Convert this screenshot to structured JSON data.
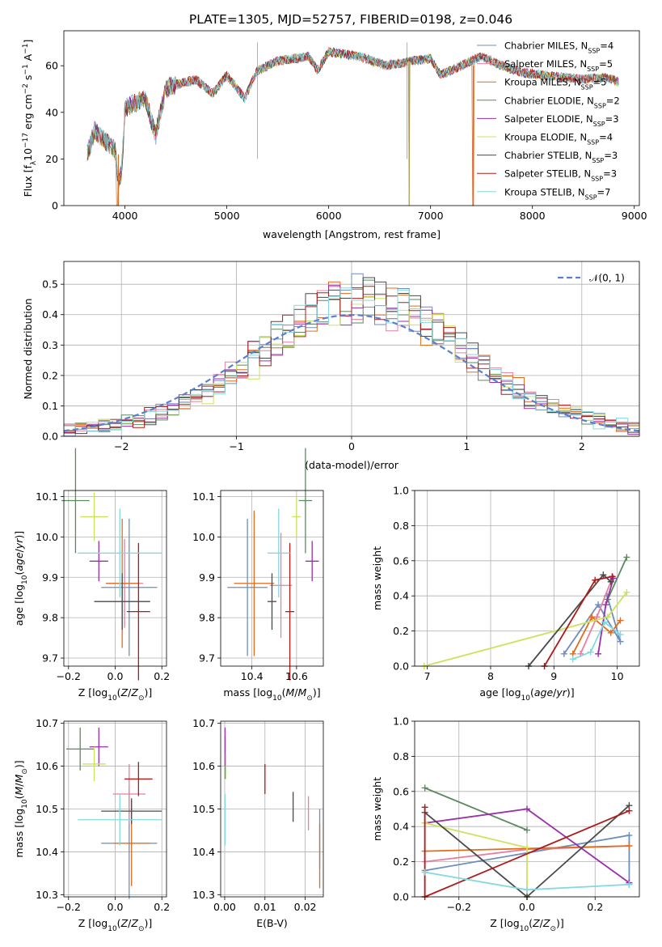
{
  "figure": {
    "title": "PLATE=1305, MJD=52757, FIBERID=0198, z=0.046"
  },
  "models": [
    {
      "name": "Chabrier MILES",
      "nssp": "4",
      "color": "#6c8ebf"
    },
    {
      "name": "Salpeter MILES",
      "nssp": "5",
      "color": "#e87f9f"
    },
    {
      "name": "Kroupa MILES",
      "nssp": "5",
      "color": "#e06c1c"
    },
    {
      "name": "Chabrier ELODIE",
      "nssp": "2",
      "color": "#5a8a5e"
    },
    {
      "name": "Salpeter ELODIE",
      "nssp": "3",
      "color": "#9a2fa8"
    },
    {
      "name": "Kroupa ELODIE",
      "nssp": "4",
      "color": "#cbe35a"
    },
    {
      "name": "Chabrier STELIB",
      "nssp": "3",
      "color": "#4a4a4a"
    },
    {
      "name": "Salpeter STELIB",
      "nssp": "3",
      "color": "#b01a1a"
    },
    {
      "name": "Kroupa STELIB",
      "nssp": "7",
      "color": "#82d9e0"
    }
  ],
  "chart_data": [
    {
      "id": "spectrum",
      "type": "line",
      "title": "PLATE=1305, MJD=52757, FIBERID=0198, z=0.046",
      "xlabel": "wavelength [Angstrom, rest frame]",
      "ylabel": "Flux [f",
      "xlim": [
        3400,
        9050
      ],
      "ylim": [
        0,
        75
      ],
      "xticks": [
        "4000",
        "5000",
        "6000",
        "7000",
        "8000",
        "9000"
      ],
      "yticks": [
        "0",
        "20",
        "40",
        "60"
      ],
      "grid": false,
      "legend": "top-right",
      "series": [
        {
          "x": 3630,
          "y": 22
        },
        {
          "x": 3700,
          "y": 32
        },
        {
          "x": 3800,
          "y": 28
        },
        {
          "x": 3900,
          "y": 24
        },
        {
          "x": 3935,
          "y": 10
        },
        {
          "x": 3970,
          "y": 15
        },
        {
          "x": 4000,
          "y": 42
        },
        {
          "x": 4100,
          "y": 44
        },
        {
          "x": 4200,
          "y": 46
        },
        {
          "x": 4300,
          "y": 30
        },
        {
          "x": 4400,
          "y": 50
        },
        {
          "x": 4500,
          "y": 52
        },
        {
          "x": 4700,
          "y": 54
        },
        {
          "x": 4860,
          "y": 48
        },
        {
          "x": 5000,
          "y": 56
        },
        {
          "x": 5175,
          "y": 46
        },
        {
          "x": 5300,
          "y": 58
        },
        {
          "x": 5500,
          "y": 62
        },
        {
          "x": 5800,
          "y": 64
        },
        {
          "x": 5890,
          "y": 58
        },
        {
          "x": 6000,
          "y": 66
        },
        {
          "x": 6300,
          "y": 64
        },
        {
          "x": 6563,
          "y": 60
        },
        {
          "x": 6800,
          "y": 62
        },
        {
          "x": 7000,
          "y": 63
        },
        {
          "x": 7100,
          "y": 56
        },
        {
          "x": 7300,
          "y": 60
        },
        {
          "x": 7500,
          "y": 64
        },
        {
          "x": 7700,
          "y": 60
        },
        {
          "x": 7900,
          "y": 57
        },
        {
          "x": 8100,
          "y": 56
        },
        {
          "x": 8300,
          "y": 55
        },
        {
          "x": 8500,
          "y": 54
        },
        {
          "x": 8700,
          "y": 55
        },
        {
          "x": 8850,
          "y": 53
        }
      ],
      "dropouts": [
        3920,
        6790,
        7420
      ]
    },
    {
      "id": "residuals",
      "type": "bar",
      "xlabel": "(data-model)/error",
      "ylabel": "Normed distribution",
      "xlim": [
        -2.5,
        2.5
      ],
      "ylim": [
        0,
        0.575
      ],
      "xticks": [
        "−2",
        "−1",
        "0",
        "1",
        "2"
      ],
      "yticks": [
        "0.0",
        "0.1",
        "0.2",
        "0.3",
        "0.4",
        "0.5"
      ],
      "grid": true,
      "legend": "top-right",
      "legend_label": "𝒩(0, 1)",
      "bin_width": 0.1,
      "bin_start": -2.5,
      "values": [
        0.025,
        0.028,
        0.032,
        0.036,
        0.04,
        0.048,
        0.056,
        0.066,
        0.078,
        0.092,
        0.11,
        0.128,
        0.148,
        0.17,
        0.195,
        0.222,
        0.25,
        0.282,
        0.314,
        0.345,
        0.375,
        0.4,
        0.42,
        0.436,
        0.445,
        0.452,
        0.45,
        0.444,
        0.432,
        0.416,
        0.396,
        0.372,
        0.345,
        0.315,
        0.285,
        0.255,
        0.226,
        0.2,
        0.175,
        0.152,
        0.13,
        0.112,
        0.096,
        0.082,
        0.07,
        0.06,
        0.051,
        0.043,
        0.036,
        0.03
      ]
    },
    {
      "id": "age-vs-Z",
      "type": "scatter",
      "xlabel": "Z [log",
      "ylabel": "age  [log",
      "xlim": [
        -0.22,
        0.22
      ],
      "ylim": [
        9.68,
        10.115
      ],
      "xticks": [
        "−0.2",
        "0.0",
        "0.2"
      ],
      "yticks": [
        "9.7",
        "9.8",
        "9.9",
        "10.0",
        "10.1"
      ],
      "grid": true,
      "points": [
        {
          "model": 0,
          "x": 0.06,
          "y": 9.875,
          "xerr": 0.12,
          "yerr": 0.17
        },
        {
          "model": 1,
          "x": 0.04,
          "y": 9.885,
          "xerr": 0.08,
          "yerr": 0.11
        },
        {
          "model": 2,
          "x": 0.03,
          "y": 9.885,
          "xerr": 0.07,
          "yerr": 0.16
        },
        {
          "model": 3,
          "x": -0.17,
          "y": 10.09,
          "xerr": 0.06,
          "yerr": 0.13
        },
        {
          "model": 4,
          "x": -0.07,
          "y": 9.94,
          "xerr": 0.04,
          "yerr": 0.05
        },
        {
          "model": 5,
          "x": -0.09,
          "y": 10.05,
          "xerr": 0.06,
          "yerr": 0.06
        },
        {
          "model": 6,
          "x": 0.03,
          "y": 9.84,
          "xerr": 0.12,
          "yerr": 0.07
        },
        {
          "model": 7,
          "x": 0.1,
          "y": 9.815,
          "xerr": 0.05,
          "yerr": 0.17
        },
        {
          "model": 8,
          "x": 0.02,
          "y": 9.96,
          "xerr": 0.18,
          "yerr": 0.11
        }
      ]
    },
    {
      "id": "age-vs-mass",
      "type": "scatter",
      "xlabel": "mass [log",
      "ylabel": "",
      "xlim": [
        10.26,
        10.72
      ],
      "ylim": [
        9.68,
        10.115
      ],
      "xticks": [
        "10.4",
        "10.6"
      ],
      "yticks": [
        "9.7",
        "9.8",
        "9.9",
        "10.0",
        "10.1"
      ],
      "grid": true,
      "points": [
        {
          "model": 0,
          "x": 10.38,
          "y": 9.875,
          "xerr": 0.09,
          "yerr": 0.17
        },
        {
          "model": 1,
          "x": 10.53,
          "y": 9.88,
          "xerr": 0.05,
          "yerr": 0.13
        },
        {
          "model": 2,
          "x": 10.41,
          "y": 9.885,
          "xerr": 0.09,
          "yerr": 0.18
        },
        {
          "model": 3,
          "x": 10.64,
          "y": 10.09,
          "xerr": 0.03,
          "yerr": 0.13
        },
        {
          "model": 4,
          "x": 10.67,
          "y": 9.94,
          "xerr": 0.03,
          "yerr": 0.05
        },
        {
          "model": 5,
          "x": 10.6,
          "y": 10.05,
          "xerr": 0.02,
          "yerr": 0.05
        },
        {
          "model": 6,
          "x": 10.49,
          "y": 9.84,
          "xerr": 0.02,
          "yerr": 0.07
        },
        {
          "model": 7,
          "x": 10.57,
          "y": 9.815,
          "xerr": 0.02,
          "yerr": 0.17
        },
        {
          "model": 8,
          "x": 10.52,
          "y": 9.96,
          "xerr": 0.05,
          "yerr": 0.11
        }
      ]
    },
    {
      "id": "mass-weight-vs-age",
      "type": "line",
      "xlabel": "age  [log",
      "ylabel": "mass weight",
      "xlim": [
        6.8,
        10.35
      ],
      "ylim": [
        0,
        1.0
      ],
      "xticks": [
        "7",
        "8",
        "9",
        "10"
      ],
      "yticks": [
        "0.0",
        "0.2",
        "0.4",
        "0.6",
        "0.8",
        "1.0"
      ],
      "grid": true,
      "series": [
        {
          "model": 0,
          "x": [
            9.16,
            9.7,
            10.05,
            9.84
          ],
          "y": [
            0.07,
            0.35,
            0.14,
            0.4
          ]
        },
        {
          "model": 1,
          "x": [
            9.42,
            9.68,
            9.93
          ],
          "y": [
            0.07,
            0.28,
            0.51
          ]
        },
        {
          "model": 2,
          "x": [
            9.3,
            9.6,
            9.9,
            10.05
          ],
          "y": [
            0.07,
            0.28,
            0.19,
            0.26
          ]
        },
        {
          "model": 3,
          "x": [
            9.85,
            10.15
          ],
          "y": [
            0.38,
            0.62
          ]
        },
        {
          "model": 4,
          "x": [
            9.7,
            9.82,
            9.94
          ],
          "y": [
            0.07,
            0.35,
            0.5
          ]
        },
        {
          "model": 5,
          "x": [
            6.95,
            9.85,
            10.15
          ],
          "y": [
            0.0,
            0.28,
            0.42
          ]
        },
        {
          "model": 6,
          "x": [
            8.6,
            9.78,
            9.9
          ],
          "y": [
            0.0,
            0.52,
            0.48
          ]
        },
        {
          "model": 7,
          "x": [
            8.85,
            9.65,
            9.92
          ],
          "y": [
            0.0,
            0.49,
            0.51
          ]
        },
        {
          "model": 8,
          "x": [
            9.3,
            9.58,
            9.8,
            10.05
          ],
          "y": [
            0.04,
            0.08,
            0.25,
            0.18
          ]
        }
      ]
    },
    {
      "id": "mass-vs-Z",
      "type": "scatter",
      "xlabel": "Z [log",
      "ylabel": "mass [log",
      "xlim": [
        -0.22,
        0.22
      ],
      "ylim": [
        10.295,
        10.705
      ],
      "xticks": [
        "−0.2",
        "0.0",
        "0.2"
      ],
      "yticks": [
        "10.3",
        "10.4",
        "10.5",
        "10.6",
        "10.7"
      ],
      "grid": true,
      "points": [
        {
          "model": 0,
          "x": 0.06,
          "y": 10.42,
          "xerr": 0.12,
          "yerr": 0.13
        },
        {
          "model": 1,
          "x": 0.06,
          "y": 10.535,
          "xerr": 0.07,
          "yerr": 0.07
        },
        {
          "model": 2,
          "x": 0.07,
          "y": 10.42,
          "xerr": 0.08,
          "yerr": 0.1
        },
        {
          "model": 3,
          "x": -0.15,
          "y": 10.64,
          "xerr": 0.06,
          "yerr": 0.05
        },
        {
          "model": 4,
          "x": -0.07,
          "y": 10.645,
          "xerr": 0.04,
          "yerr": 0.045
        },
        {
          "model": 5,
          "x": -0.09,
          "y": 10.605,
          "xerr": 0.05,
          "yerr": 0.04
        },
        {
          "model": 6,
          "x": 0.07,
          "y": 10.495,
          "xerr": 0.13,
          "yerr": 0.03
        },
        {
          "model": 7,
          "x": 0.1,
          "y": 10.57,
          "xerr": 0.06,
          "yerr": 0.04
        },
        {
          "model": 8,
          "x": 0.02,
          "y": 10.475,
          "xerr": 0.18,
          "yerr": 0.06
        }
      ]
    },
    {
      "id": "mass-vs-ebv",
      "type": "scatter",
      "xlabel": "E(B-V)",
      "ylabel": "",
      "xlim": [
        -0.001,
        0.0245
      ],
      "ylim": [
        10.295,
        10.705
      ],
      "xticks": [
        "0.00",
        "0.01",
        "0.02"
      ],
      "yticks": [
        "10.3",
        "10.4",
        "10.5",
        "10.6",
        "10.7"
      ],
      "grid": true,
      "points": [
        {
          "model": 0,
          "x": 0.0236,
          "y": 10.43,
          "xerr": 0.0,
          "yerr": 0.07
        },
        {
          "model": 1,
          "x": 0.0208,
          "y": 10.49,
          "xerr": 0.0,
          "yerr": 0.04
        },
        {
          "model": 2,
          "x": 0.0236,
          "y": 10.39,
          "xerr": 0.0,
          "yerr": 0.075
        },
        {
          "model": 3,
          "x": 0.0001,
          "y": 10.62,
          "xerr": 0.0,
          "yerr": 0.05
        },
        {
          "model": 4,
          "x": 0.0001,
          "y": 10.645,
          "xerr": 0.0,
          "yerr": 0.045
        },
        {
          "model": 5,
          "x": 0.0003,
          "y": 10.6,
          "xerr": 0.0,
          "yerr": 0.03
        },
        {
          "model": 6,
          "x": 0.017,
          "y": 10.505,
          "xerr": 0.0,
          "yerr": 0.035
        },
        {
          "model": 7,
          "x": 0.01,
          "y": 10.57,
          "xerr": 0.0,
          "yerr": 0.035
        },
        {
          "model": 8,
          "x": 0.0001,
          "y": 10.475,
          "xerr": 0.0,
          "yerr": 0.06
        }
      ]
    },
    {
      "id": "mass-weight-vs-Z",
      "type": "line",
      "xlabel": "Z [log",
      "ylabel": "mass weight",
      "xlim": [
        -0.33,
        0.33
      ],
      "ylim": [
        0,
        1.0
      ],
      "xticks": [
        "−0.2",
        "0.0",
        "0.2"
      ],
      "yticks": [
        "0.0",
        "0.2",
        "0.4",
        "0.6",
        "0.8",
        "1.0"
      ],
      "grid": true,
      "series": [
        {
          "model": 0,
          "x": [
            -0.3,
            0.3,
            0.3
          ],
          "y": [
            0.15,
            0.35,
            0.07
          ]
        },
        {
          "model": 1,
          "x": [
            -0.3,
            0.0,
            0.3
          ],
          "y": [
            0.2,
            0.27,
            0.29
          ]
        },
        {
          "model": 2,
          "x": [
            -0.3,
            0.3
          ],
          "y": [
            0.26,
            0.29
          ]
        },
        {
          "model": 3,
          "x": [
            -0.3,
            0.0
          ],
          "y": [
            0.62,
            0.38
          ]
        },
        {
          "model": 4,
          "x": [
            -0.3,
            0.0,
            0.3
          ],
          "y": [
            0.42,
            0.5,
            0.08
          ]
        },
        {
          "model": 5,
          "x": [
            -0.3,
            0.0,
            0.0
          ],
          "y": [
            0.42,
            0.28,
            0.0
          ]
        },
        {
          "model": 6,
          "x": [
            -0.3,
            0.0,
            0.3
          ],
          "y": [
            0.48,
            0.0,
            0.52
          ]
        },
        {
          "model": 7,
          "x": [
            -0.3,
            -0.3,
            0.3
          ],
          "y": [
            0.51,
            0.0,
            0.49
          ]
        },
        {
          "model": 8,
          "x": [
            -0.3,
            0.0,
            0.3
          ],
          "y": [
            0.14,
            0.04,
            0.07
          ]
        }
      ]
    }
  ]
}
